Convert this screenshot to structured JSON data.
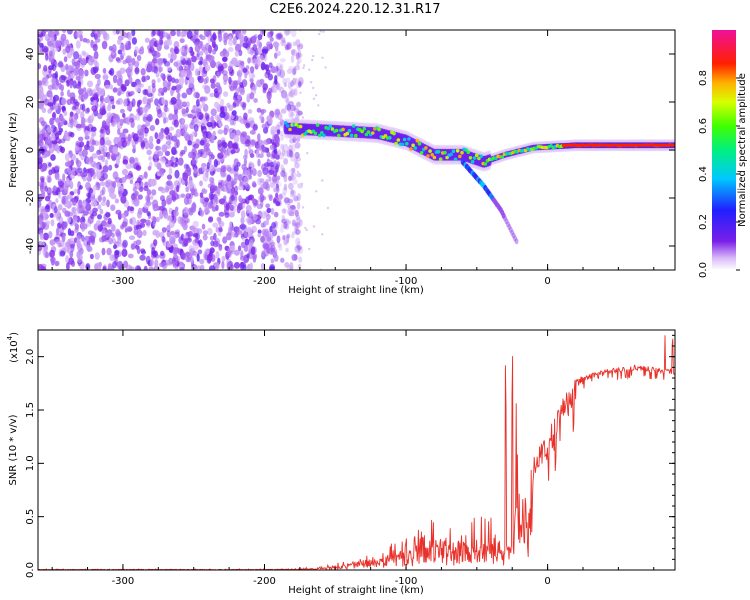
{
  "title": "C2E6.2024.220.12.31.R17",
  "chart_data": [
    {
      "type": "heatmap",
      "xlabel": "Height of straight line (km)",
      "ylabel": "Frequency (Hz)",
      "xlim": [
        -360,
        90
      ],
      "ylim": [
        -50,
        50
      ],
      "xticks": [
        -300,
        -200,
        -100,
        0
      ],
      "yticks": [
        -40,
        -20,
        0,
        20,
        40
      ],
      "colorbar": {
        "label": "Normalized spectral amplitude",
        "range": [
          0,
          1
        ],
        "ticks": [
          "0.0",
          "0.2",
          "0.4",
          "0.6",
          "0.8"
        ],
        "colormap": "rainbow (purple → blue → cyan → green → yellow → red → magenta)"
      },
      "features": {
        "noise_region_x": [
          -360,
          -180
        ],
        "signal_track": [
          {
            "x": -185,
            "y": 9
          },
          {
            "x": -150,
            "y": 8
          },
          {
            "x": -120,
            "y": 7
          },
          {
            "x": -100,
            "y": 4
          },
          {
            "x": -80,
            "y": -2
          },
          {
            "x": -60,
            "y": -2
          },
          {
            "x": -45,
            "y": -5
          },
          {
            "x": -30,
            "y": -2
          },
          {
            "x": -10,
            "y": 1
          },
          {
            "x": 20,
            "y": 2
          },
          {
            "x": 90,
            "y": 2
          }
        ],
        "branch": [
          {
            "x": -60,
            "y": -5
          },
          {
            "x": -45,
            "y": -15
          },
          {
            "x": -33,
            "y": -25
          },
          {
            "x": -22,
            "y": -38
          }
        ]
      }
    },
    {
      "type": "line",
      "xlabel": "Height of straight line (km)",
      "ylabel": "SNR (10 * v/v)",
      "multiplier": "(x10",
      "multiplier_exp": "4",
      "multiplier_close": ")",
      "xlim": [
        -360,
        90
      ],
      "ylim": [
        0,
        2.25
      ],
      "xticks": [
        -300,
        -200,
        -100,
        0
      ],
      "yticks": [
        "0.0",
        "0.5",
        "1.0",
        "1.5",
        "2.0"
      ],
      "color": "#e8312a",
      "envelope": [
        {
          "x": -360,
          "y": 0.01
        },
        {
          "x": -200,
          "y": 0.01
        },
        {
          "x": -160,
          "y": 0.03
        },
        {
          "x": -140,
          "y": 0.1
        },
        {
          "x": -120,
          "y": 0.2
        },
        {
          "x": -100,
          "y": 0.32
        },
        {
          "x": -80,
          "y": 0.5
        },
        {
          "x": -60,
          "y": 0.45
        },
        {
          "x": -40,
          "y": 0.55
        },
        {
          "x": -30,
          "y": 0.35
        },
        {
          "x": -20,
          "y": 1.2
        },
        {
          "x": -10,
          "y": 1.05
        },
        {
          "x": 0,
          "y": 1.3
        },
        {
          "x": 10,
          "y": 1.6
        },
        {
          "x": 20,
          "y": 1.8
        },
        {
          "x": 40,
          "y": 1.88
        },
        {
          "x": 60,
          "y": 1.92
        },
        {
          "x": 80,
          "y": 1.9
        },
        {
          "x": 90,
          "y": 1.88
        }
      ]
    }
  ]
}
